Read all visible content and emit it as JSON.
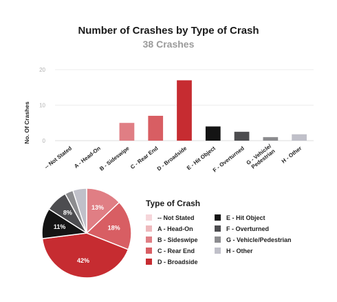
{
  "header": {
    "title": "Number of Crashes by Type of Crash",
    "subtitle": "38 Crashes"
  },
  "chart_data": [
    {
      "type": "bar",
      "ylabel": "No. Of Crashes",
      "ylim": [
        0,
        20
      ],
      "yticks": [
        0,
        10,
        20
      ],
      "grid": true,
      "categories": [
        "-- Not Stated",
        "A - Head-On",
        "B - Sideswipe",
        "C - Rear End",
        "D - Broadside",
        "E - Hit Object",
        "F - Overturned",
        "G - Vehicle/ Pedestrian",
        "H - Other"
      ],
      "values": [
        0,
        0,
        5,
        7,
        17,
        4,
        2.5,
        1,
        1.8
      ],
      "colors": [
        "#f6d6da",
        "#eeb8bc",
        "#e07e84",
        "#d85e63",
        "#c62c31",
        "#141414",
        "#4d4d50",
        "#8c8c8f",
        "#c0c0c9"
      ]
    },
    {
      "type": "pie",
      "legend_title": "Type of Crash",
      "legend": [
        "-- Not Stated",
        "A - Head-On",
        "B - Sideswipe",
        "C - Rear End",
        "D - Broadside",
        "E - Hit Object",
        "F - Overturned",
        "G - Vehicle/Pedestrian",
        "H - Other"
      ],
      "values": [
        0,
        0,
        13,
        18,
        42,
        11,
        8,
        3,
        5
      ],
      "labels": [
        "",
        "",
        "13%",
        "18%",
        "42%",
        "11%",
        "8%",
        "",
        ""
      ],
      "colors": [
        "#f6d6da",
        "#eeb8bc",
        "#e07e84",
        "#d85e63",
        "#c62c31",
        "#141414",
        "#4d4d50",
        "#8c8c8f",
        "#c0c0c9"
      ]
    }
  ]
}
